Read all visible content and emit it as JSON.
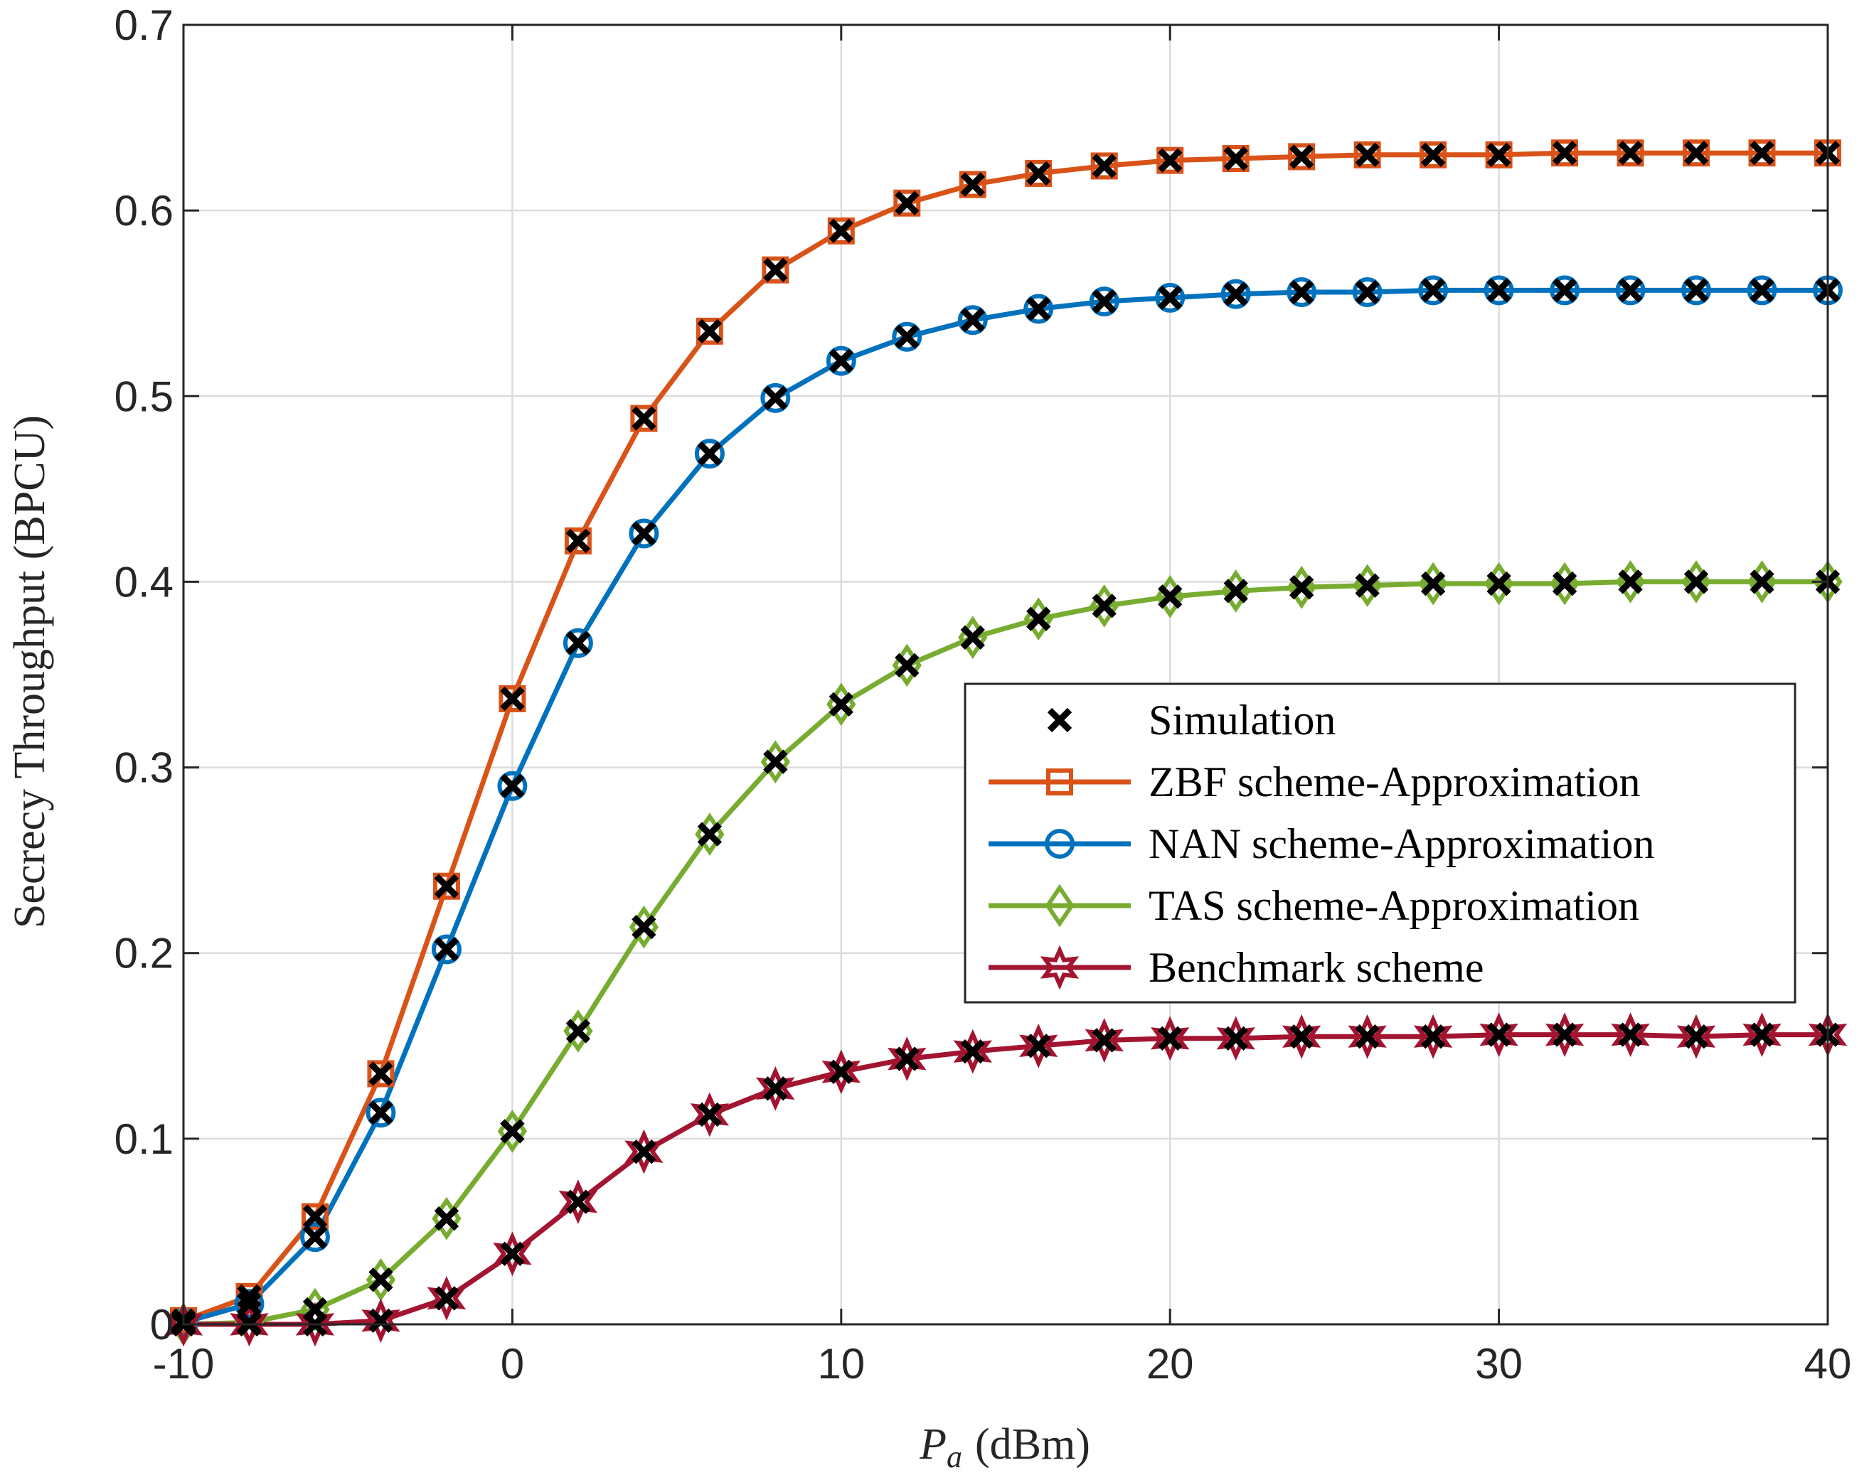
{
  "chart_data": {
    "type": "line",
    "title": "",
    "xlabel_symbol": "P",
    "xlabel_subscript": "a",
    "xlabel_unit": "(dBm)",
    "ylabel": "Secrecy Throughput (BPCU)",
    "xlim": [
      -10,
      40
    ],
    "ylim": [
      0,
      0.7
    ],
    "xticks": [
      -10,
      0,
      10,
      20,
      30,
      40
    ],
    "xtick_labels": [
      "-10",
      "0",
      "10",
      "20",
      "30",
      "40"
    ],
    "yticks": [
      0,
      0.1,
      0.2,
      0.3,
      0.4,
      0.5,
      0.6,
      0.7
    ],
    "ytick_labels": [
      "0",
      "0.1",
      "0.2",
      "0.3",
      "0.4",
      "0.5",
      "0.6",
      "0.7"
    ],
    "grid": true,
    "legend_position": "center-right",
    "x": [
      -10,
      -8,
      -6,
      -4,
      -2,
      0,
      2,
      4,
      6,
      8,
      10,
      12,
      14,
      16,
      18,
      20,
      22,
      24,
      26,
      28,
      30,
      32,
      34,
      36,
      38,
      40
    ],
    "series": [
      {
        "name": "ZBF scheme-Approximation",
        "color": "#d95319",
        "marker": "square",
        "values": [
          0.002,
          0.015,
          0.058,
          0.135,
          0.236,
          0.337,
          0.422,
          0.488,
          0.535,
          0.568,
          0.589,
          0.604,
          0.614,
          0.62,
          0.624,
          0.627,
          0.628,
          0.629,
          0.63,
          0.63,
          0.63,
          0.631,
          0.631,
          0.631,
          0.631,
          0.631
        ]
      },
      {
        "name": "NAN scheme-Approximation",
        "color": "#0072bd",
        "marker": "circle",
        "values": [
          0.001,
          0.011,
          0.047,
          0.114,
          0.202,
          0.29,
          0.367,
          0.426,
          0.469,
          0.499,
          0.519,
          0.532,
          0.541,
          0.547,
          0.551,
          0.553,
          0.555,
          0.556,
          0.556,
          0.557,
          0.557,
          0.557,
          0.557,
          0.557,
          0.557,
          0.557
        ]
      },
      {
        "name": "TAS scheme-Approximation",
        "color": "#77ac30",
        "marker": "diamond",
        "values": [
          0.0,
          0.001,
          0.008,
          0.024,
          0.057,
          0.104,
          0.158,
          0.214,
          0.264,
          0.303,
          0.334,
          0.355,
          0.37,
          0.38,
          0.387,
          0.392,
          0.395,
          0.397,
          0.398,
          0.399,
          0.399,
          0.399,
          0.4,
          0.4,
          0.4,
          0.4
        ]
      },
      {
        "name": "Benchmark scheme",
        "color": "#a2142f",
        "marker": "hexagram",
        "values": [
          0.0,
          0.0,
          0.0,
          0.002,
          0.014,
          0.038,
          0.066,
          0.093,
          0.113,
          0.127,
          0.136,
          0.143,
          0.147,
          0.15,
          0.153,
          0.154,
          0.154,
          0.155,
          0.155,
          0.155,
          0.156,
          0.156,
          0.156,
          0.155,
          0.156,
          0.156
        ]
      }
    ],
    "simulation": {
      "name": "Simulation",
      "color": "#000000",
      "marker": "x",
      "overlays": [
        "ZBF scheme-Approximation",
        "NAN scheme-Approximation",
        "TAS scheme-Approximation",
        "Benchmark scheme"
      ]
    },
    "legend": [
      "Simulation",
      "ZBF scheme-Approximation",
      "NAN scheme-Approximation",
      "TAS scheme-Approximation",
      "Benchmark scheme"
    ]
  }
}
